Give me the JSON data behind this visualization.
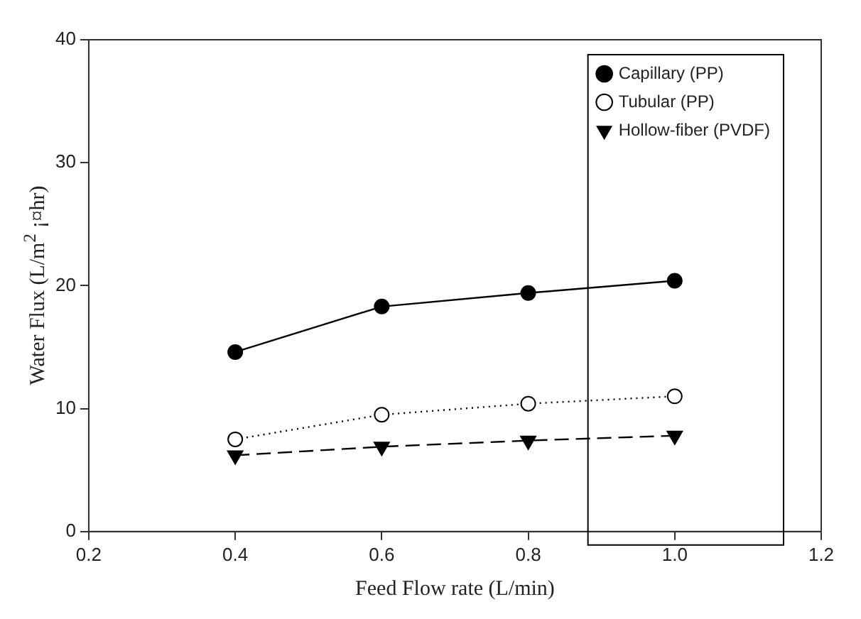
{
  "chart_data": {
    "type": "line",
    "xlabel": "Feed Flow rate (L/min)",
    "ylabel": "Water Flux (L/m$^{2}$ ¡¤hr)",
    "x": [
      0.4,
      0.6,
      0.8,
      1.0
    ],
    "series": [
      {
        "name": "Capillary (PP)",
        "color": "#000000",
        "values": [
          14.6,
          18.3,
          19.4,
          20.4
        ],
        "marker": "circle",
        "line_style": "solid"
      },
      {
        "name": "Tubular (PP)",
        "color": "#000000",
        "values": [
          7.5,
          9.5,
          10.4,
          11.0
        ],
        "marker": "circle-open",
        "line_style": "dotted"
      },
      {
        "name": "Hollow-fiber (PVDF)",
        "color": "#000000",
        "values": [
          6.2,
          6.9,
          7.4,
          7.8
        ],
        "marker": "triangle-down",
        "line_style": "dashed"
      }
    ],
    "xlim": [
      0.2,
      1.2
    ],
    "xticks": [
      0.2,
      0.4,
      0.6,
      0.8,
      {
        "value": 1,
        "label": "1.0"
      },
      1.2
    ],
    "ylim": [
      0,
      40
    ],
    "yticks": [
      0,
      10,
      20,
      30,
      40
    ],
    "grid": false,
    "legend": "top right"
  }
}
